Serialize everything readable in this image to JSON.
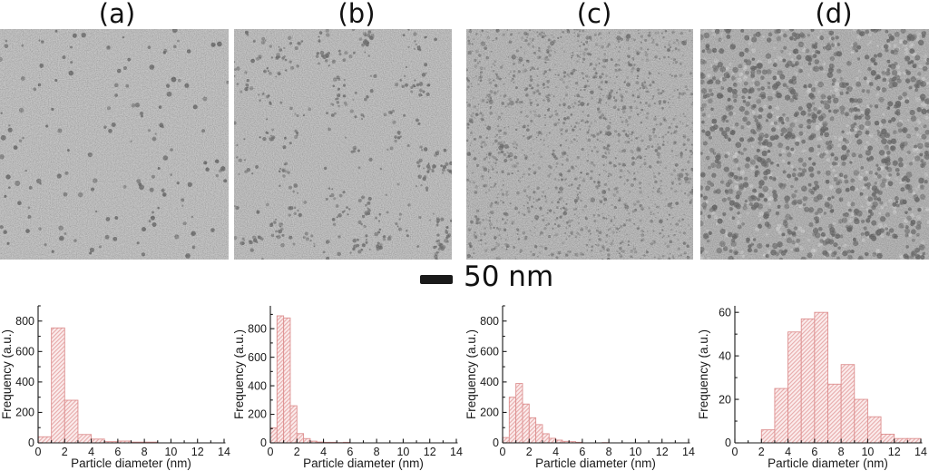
{
  "figure": {
    "panel_labels": [
      "(a)",
      "(b)",
      "(c)",
      "(d)"
    ],
    "scale_bar_label": "50 nm"
  },
  "style": {
    "bar_fill": "#fbecec",
    "bar_hatch": "#e7aaaa",
    "bar_edge": "#dd9090",
    "axis_color": "#1a1a1a"
  },
  "tem_panels": [
    {
      "label": "(a)",
      "description": "sparse isolated dark nanoparticles on light grainy background",
      "bg": "#b7b7b7",
      "texture": {
        "seed": 11,
        "grain": 0.5,
        "layers": [
          {
            "kind": "dots",
            "count": 150,
            "rmin": 1.1,
            "rmax": 3.0,
            "color": "#1f1f1f",
            "omin": 0.55,
            "omax": 0.95
          }
        ]
      }
    },
    {
      "label": "(b)",
      "description": "small nanoparticle aggregates, moderate density",
      "bg": "#b3b3b3",
      "texture": {
        "seed": 23,
        "grain": 0.5,
        "layers": [
          {
            "kind": "clusters",
            "clusters": 95,
            "perMin": 2,
            "perMax": 7,
            "spread": 7,
            "rmin": 0.9,
            "rmax": 2.4,
            "color": "#242424",
            "omin": 0.5,
            "omax": 0.9
          },
          {
            "kind": "dots",
            "count": 60,
            "rmin": 1.0,
            "rmax": 2.2,
            "color": "#242424",
            "omin": 0.5,
            "omax": 0.9
          }
        ]
      }
    },
    {
      "label": "(c)",
      "description": "dense fine speckled nanoparticle coverage",
      "bg": "#a7a7a7",
      "texture": {
        "seed": 37,
        "grain": 0.55,
        "layers": [
          {
            "kind": "dots",
            "count": 1500,
            "rmin": 0.6,
            "rmax": 1.9,
            "color": "#1a1a1a",
            "omin": 0.3,
            "omax": 0.8
          },
          {
            "kind": "dots",
            "count": 70,
            "rmin": 1.6,
            "rmax": 2.8,
            "color": "#0f0f0f",
            "omin": 0.5,
            "omax": 0.85
          }
        ]
      }
    },
    {
      "label": "(d)",
      "description": "densely packed larger dark nanoparticles with bright interstices",
      "bg": "#9e9e9e",
      "texture": {
        "seed": 51,
        "grain": 0.5,
        "layers": [
          {
            "kind": "dots",
            "count": 420,
            "rmin": 1.3,
            "rmax": 2.8,
            "color": "#e6e6e6",
            "omin": 0.3,
            "omax": 0.6
          },
          {
            "kind": "dots",
            "count": 950,
            "rmin": 1.7,
            "rmax": 3.4,
            "color": "#161616",
            "omin": 0.45,
            "omax": 0.9
          }
        ]
      }
    }
  ],
  "chart_data": [
    {
      "type": "bar",
      "panel": "(a)",
      "xlabel": "Particle diameter (nm)",
      "ylabel": "Frequency (a.u.)",
      "xlim": [
        0,
        14
      ],
      "ylim": [
        0,
        900
      ],
      "xticks": [
        0,
        2,
        4,
        6,
        8,
        10,
        12,
        14
      ],
      "yticks": [
        0,
        200,
        400,
        600,
        800
      ],
      "x_minor_step": 1,
      "y_minor_step": 100,
      "bin_start": 0,
      "bin_width": 1,
      "values": [
        40,
        755,
        280,
        55,
        25,
        8,
        12,
        5,
        5,
        0,
        0,
        0,
        0,
        0
      ],
      "grid": false,
      "legend": false
    },
    {
      "type": "bar",
      "panel": "(b)",
      "xlabel": "Particle diameter (nm)",
      "ylabel": "Frequency (a.u.)",
      "xlim": [
        0,
        14
      ],
      "ylim": [
        0,
        960
      ],
      "xticks": [
        0,
        2,
        4,
        6,
        8,
        10,
        12,
        14
      ],
      "yticks": [
        0,
        200,
        400,
        600,
        800
      ],
      "x_minor_step": 1,
      "y_minor_step": 100,
      "bin_start": 0,
      "bin_width": 0.5,
      "values": [
        105,
        890,
        875,
        260,
        65,
        30,
        12,
        6,
        4,
        4,
        2,
        4
      ],
      "grid": false,
      "legend": false
    },
    {
      "type": "bar",
      "panel": "(c)",
      "xlabel": "Particle diameter (nm)",
      "ylabel": "Frequency (a.u.)",
      "xlim": [
        0,
        14
      ],
      "ylim": [
        0,
        900
      ],
      "xticks": [
        0,
        2,
        4,
        6,
        8,
        10,
        12,
        14
      ],
      "yticks": [
        0,
        200,
        400,
        600,
        800
      ],
      "x_minor_step": 1,
      "y_minor_step": 100,
      "bin_start": 0,
      "bin_width": 0.5,
      "values": [
        35,
        300,
        390,
        255,
        165,
        120,
        60,
        30,
        18,
        10,
        8,
        4,
        0,
        0,
        0,
        2
      ],
      "grid": false,
      "legend": false
    },
    {
      "type": "bar",
      "panel": "(d)",
      "xlabel": "Particle diameter (nm)",
      "ylabel": "Frequency (a.u.)",
      "xlim": [
        0,
        14
      ],
      "ylim": [
        0,
        63
      ],
      "xticks": [
        0,
        2,
        4,
        6,
        8,
        10,
        12,
        14
      ],
      "yticks": [
        0,
        20,
        40,
        60
      ],
      "x_minor_step": 1,
      "y_minor_step": 10,
      "bin_start": 2,
      "bin_width": 1,
      "values": [
        6,
        25,
        51,
        57,
        60,
        27,
        36,
        20,
        12,
        4,
        2,
        2
      ],
      "grid": false,
      "legend": false
    }
  ]
}
